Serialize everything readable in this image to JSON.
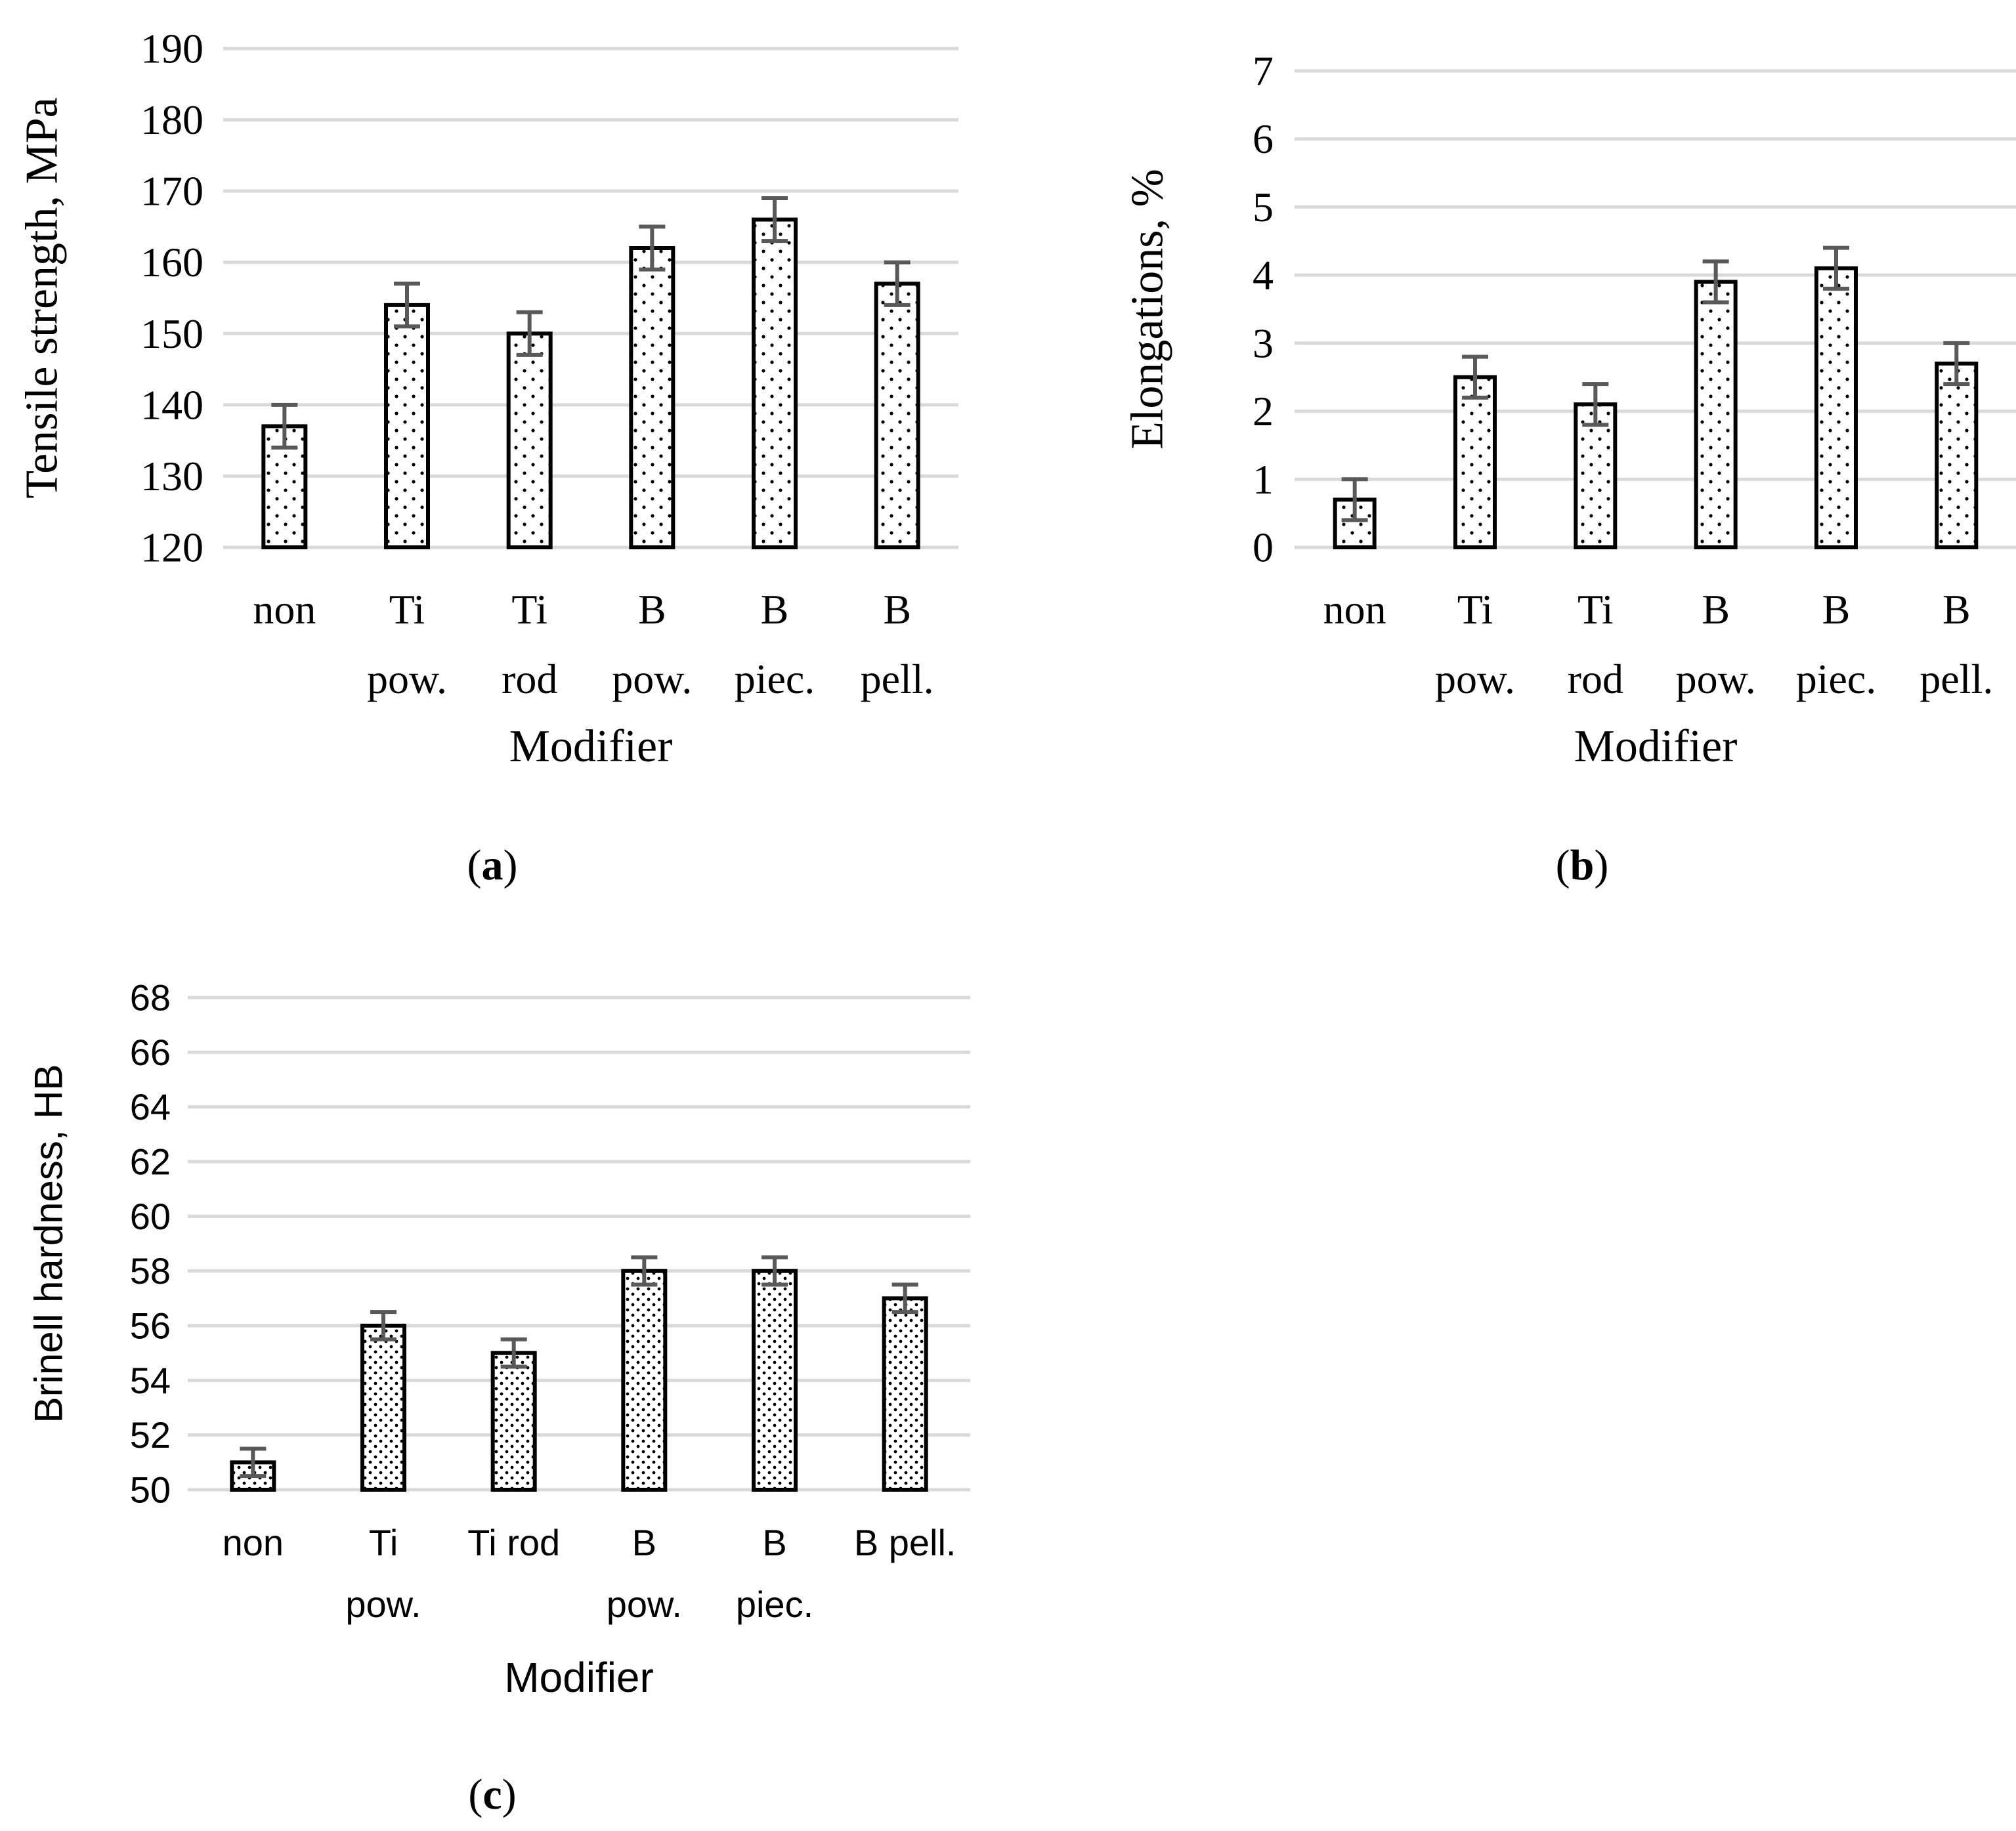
{
  "chart_data": [
    {
      "type": "bar",
      "panel_label": "a",
      "font": "serif",
      "pattern": "sparse",
      "categories": [
        [
          "non"
        ],
        [
          "Ti",
          "pow."
        ],
        [
          "Ti",
          "rod"
        ],
        [
          "B",
          "pow."
        ],
        [
          "B",
          "piec."
        ],
        [
          "B",
          "pell."
        ]
      ],
      "values": [
        137,
        154,
        150,
        162,
        166,
        157
      ],
      "errors": [
        3,
        3,
        3,
        3,
        3,
        3
      ],
      "xlabel": "Modifier",
      "ylabel": "Tensile strength, MPa",
      "ylim": [
        120,
        190
      ],
      "yticks": [
        120,
        130,
        140,
        150,
        160,
        170,
        180,
        190
      ],
      "grid": true
    },
    {
      "type": "bar",
      "panel_label": "b",
      "font": "serif",
      "pattern": "sparse",
      "categories": [
        [
          "non"
        ],
        [
          "Ti",
          "pow."
        ],
        [
          "Ti",
          "rod"
        ],
        [
          "B",
          "pow."
        ],
        [
          "B",
          "piec."
        ],
        [
          "B",
          "pell."
        ]
      ],
      "values": [
        0.7,
        2.5,
        2.1,
        3.9,
        4.1,
        2.7
      ],
      "errors": [
        0.3,
        0.3,
        0.3,
        0.3,
        0.3,
        0.3
      ],
      "xlabel": "Modifier",
      "ylabel": "Elongations, %",
      "ylim": [
        0,
        7
      ],
      "yticks": [
        0,
        1,
        2,
        3,
        4,
        5,
        6,
        7
      ],
      "grid": true
    },
    {
      "type": "bar",
      "panel_label": "c",
      "font": "sans",
      "pattern": "dense",
      "categories": [
        [
          "non"
        ],
        [
          "Ti",
          "pow."
        ],
        [
          "Ti rod"
        ],
        [
          "B",
          "pow."
        ],
        [
          "B",
          "piec."
        ],
        [
          "B pell."
        ]
      ],
      "values": [
        51,
        56,
        55,
        58,
        58,
        57
      ],
      "errors": [
        0.5,
        0.5,
        0.5,
        0.5,
        0.5,
        0.5
      ],
      "xlabel": "Modifier",
      "ylabel": "Brinell hardness, HB",
      "ylim": [
        50,
        68
      ],
      "yticks": [
        50,
        52,
        54,
        56,
        58,
        60,
        62,
        64,
        66,
        68
      ],
      "grid": true
    }
  ],
  "colors": {
    "grid": "#d9d9d9",
    "bar_border": "#000000",
    "bar_fill": "#ffffff",
    "error_bar": "#595959",
    "text": "#000000"
  }
}
